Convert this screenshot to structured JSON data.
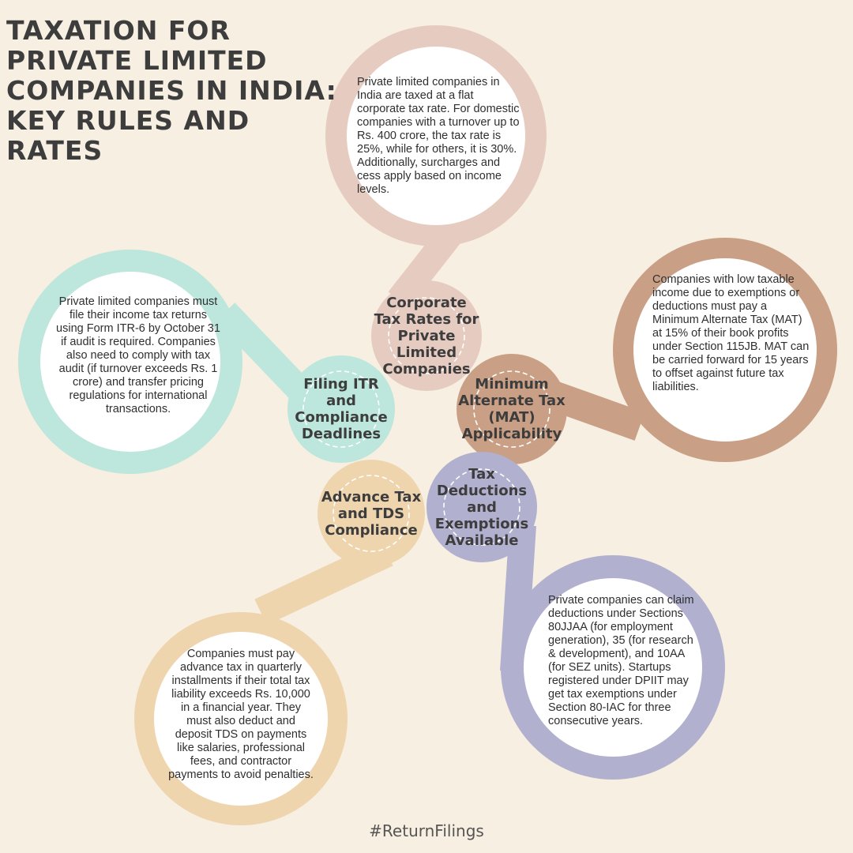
{
  "title": "TAXATION FOR PRIVATE LIMITED COMPANIES IN INDIA: KEY RULES AND RATES",
  "colors": {
    "background": "#f7efe1",
    "pink": "#e6cbc0",
    "teal": "#bde6dc",
    "brown": "#c9a086",
    "tan": "#efd5ae",
    "lavender": "#b1b0cf",
    "text": "#3d3d3d"
  },
  "topics": [
    {
      "heading": "Corporate Tax Rates for Private Limited Companies",
      "text": "Private limited companies in India are taxed at a flat corporate tax rate. For domestic companies with a turnover up to Rs. 400 crore, the tax rate is 25%, while for others, it is 30%. Additionally, surcharges and cess apply based on income levels."
    },
    {
      "heading": "Filing ITR and Compliance Deadlines",
      "text": "Private limited companies must file their income tax returns using Form ITR-6 by October 31 if audit is required. Companies also need to comply with tax audit (if turnover exceeds Rs. 1 crore) and transfer pricing regulations for international transactions."
    },
    {
      "heading": "Minimum Alternate Tax (MAT) Applicability",
      "text": "Companies with low taxable income due to exemptions or deductions must pay a Minimum Alternate Tax (MAT) at 15% of their book profits under Section 115JB. MAT can be carried forward for 15 years to offset against future tax liabilities."
    },
    {
      "heading": "Advance Tax and TDS Compliance",
      "text": "Companies must pay advance tax in quarterly installments if their total tax liability exceeds Rs. 10,000 in a financial year. They must also deduct and deposit TDS on payments like salaries, professional fees, and contractor payments to avoid penalties."
    },
    {
      "heading": "Tax Deductions and Exemptions Available",
      "text": "Private companies can claim deductions under Sections 80JJAA (for employment generation), 35 (for research & development), and 10AA (for SEZ units). Startups registered under DPIIT may get tax exemptions under Section 80-IAC for three consecutive years."
    }
  ],
  "footer": "#ReturnFilings"
}
